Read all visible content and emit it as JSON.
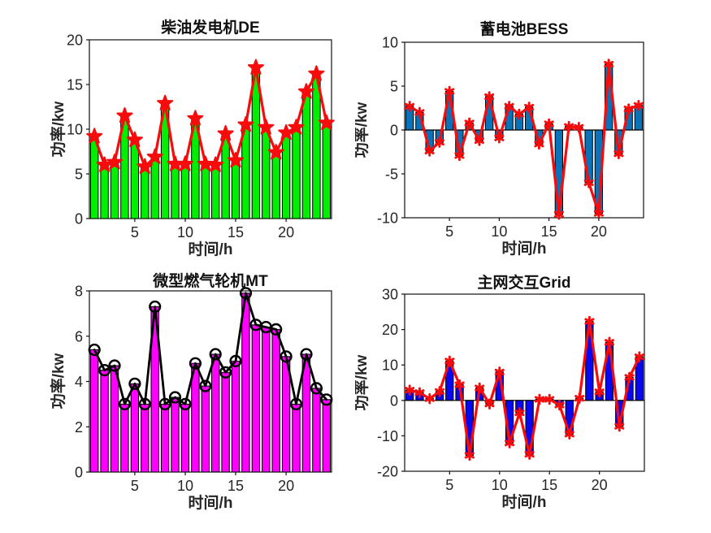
{
  "figure": {
    "background": "#ffffff",
    "axis_color": "#111111",
    "tick_label_color": "#262626"
  },
  "chart_data": [
    {
      "type": "bar",
      "title": "柴油发电机DE",
      "xlabel": "时间/h",
      "ylabel": "功率/kw",
      "x": [
        1,
        2,
        3,
        4,
        5,
        6,
        7,
        8,
        9,
        10,
        11,
        12,
        13,
        14,
        15,
        16,
        17,
        18,
        19,
        20,
        21,
        22,
        23,
        24
      ],
      "values": [
        9.2,
        6.0,
        6.3,
        11.5,
        8.8,
        5.8,
        6.9,
        12.9,
        6.1,
        6.1,
        11.2,
        6.1,
        6.0,
        9.5,
        6.5,
        10.5,
        16.9,
        10.2,
        7.4,
        9.6,
        10.2,
        14.2,
        16.2,
        10.7
      ],
      "ylim": [
        0,
        20
      ],
      "yticks": [
        0,
        5,
        10,
        15,
        20
      ],
      "xticks": [
        5,
        10,
        15,
        20
      ],
      "grid": false,
      "legend": null,
      "bar_color": "#00ee00",
      "bar_edge_color": "#000000",
      "line_color": "#f80b0b",
      "marker": "pentagram",
      "marker_color": "#f80b0b"
    },
    {
      "type": "bar",
      "title": "蓄电池BESS",
      "xlabel": "时间/h",
      "ylabel": "功率/kw",
      "x": [
        1,
        2,
        3,
        4,
        5,
        6,
        7,
        8,
        9,
        10,
        11,
        12,
        13,
        14,
        15,
        16,
        17,
        18,
        19,
        20,
        21,
        22,
        23,
        24
      ],
      "values": [
        2.7,
        2.0,
        -2.4,
        -1.4,
        4.4,
        -2.9,
        0.8,
        -1.2,
        3.8,
        -0.9,
        2.7,
        1.8,
        2.6,
        -1.6,
        0.7,
        -9.6,
        0.4,
        0.3,
        -6.0,
        -9.5,
        7.5,
        -2.7,
        2.4,
        2.8
      ],
      "ylim": [
        -10,
        10
      ],
      "yticks": [
        -10,
        -5,
        0,
        5,
        10
      ],
      "xticks": [
        5,
        10,
        15,
        20
      ],
      "grid": false,
      "legend": null,
      "bar_color": "#0a72b9",
      "bar_edge_color": "#000000",
      "line_color": "#f80b0b",
      "marker": "asterisk",
      "marker_color": "#f80b0b"
    },
    {
      "type": "bar",
      "title": "微型燃气轮机MT",
      "xlabel": "时间/h",
      "ylabel": "功率/kw",
      "x": [
        1,
        2,
        3,
        4,
        5,
        6,
        7,
        8,
        9,
        10,
        11,
        12,
        13,
        14,
        15,
        16,
        17,
        18,
        19,
        20,
        21,
        22,
        23,
        24
      ],
      "values": [
        5.4,
        4.5,
        4.7,
        3.0,
        3.9,
        3.0,
        7.3,
        3.0,
        3.3,
        3.0,
        4.8,
        3.8,
        5.2,
        4.4,
        4.9,
        7.9,
        6.5,
        6.4,
        6.3,
        5.1,
        3.0,
        5.2,
        3.7,
        3.2
      ],
      "ylim": [
        0,
        8
      ],
      "yticks": [
        0,
        2,
        4,
        6,
        8
      ],
      "xticks": [
        5,
        10,
        15,
        20
      ],
      "grid": false,
      "legend": null,
      "bar_color": "#ff00ff",
      "bar_edge_color": "#000000",
      "line_color": "#000000",
      "marker": "circle",
      "marker_color": "#000000"
    },
    {
      "type": "bar",
      "title": "主网交互Grid",
      "xlabel": "时间/h",
      "ylabel": "功率/kw",
      "x": [
        1,
        2,
        3,
        4,
        5,
        6,
        7,
        8,
        9,
        10,
        11,
        12,
        13,
        14,
        15,
        16,
        17,
        18,
        19,
        20,
        21,
        22,
        23,
        24
      ],
      "values": [
        2.9,
        2.2,
        0.5,
        2.5,
        11.1,
        4.4,
        -15.5,
        3.5,
        -1.0,
        8.0,
        -12.0,
        -3.5,
        -15.2,
        0.3,
        0.3,
        -1.3,
        -9.5,
        0.6,
        22.3,
        2.4,
        16.4,
        -7.3,
        6.5,
        12.3
      ],
      "ylim": [
        -20,
        30
      ],
      "yticks": [
        -20,
        -10,
        0,
        10,
        20,
        30
      ],
      "xticks": [
        5,
        10,
        15,
        20
      ],
      "grid": false,
      "legend": null,
      "bar_color": "#0808f0",
      "bar_edge_color": "#000000",
      "line_color": "#f80b0b",
      "marker": "asterisk",
      "marker_color": "#f80b0b"
    }
  ]
}
